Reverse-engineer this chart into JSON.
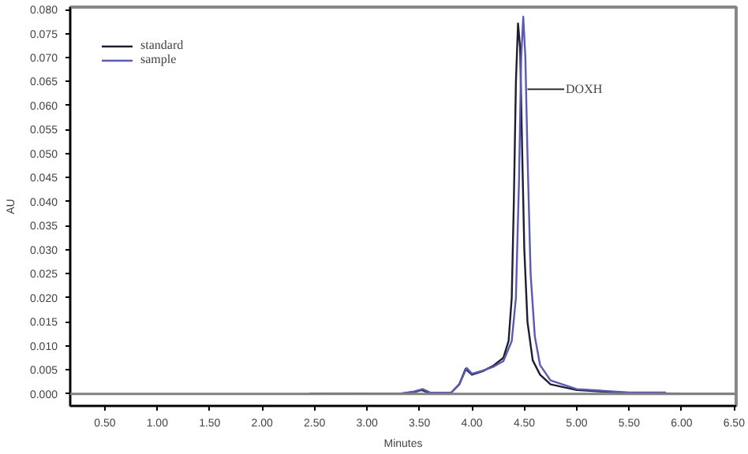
{
  "chart_data": {
    "type": "line",
    "xlabel": "Minutes",
    "ylabel": "AU",
    "xlim": [
      0.17,
      6.52
    ],
    "ylim": [
      -0.0025,
      0.0805
    ],
    "xticks": [
      {
        "value": 0.5,
        "label": "0.50"
      },
      {
        "value": 1.0,
        "label": "1.00"
      },
      {
        "value": 1.5,
        "label": "1.50"
      },
      {
        "value": 2.0,
        "label": "2.00"
      },
      {
        "value": 2.5,
        "label": "2.50"
      },
      {
        "value": 3.0,
        "label": "3.00"
      },
      {
        "value": 3.5,
        "label": "3.50"
      },
      {
        "value": 4.0,
        "label": "4.00"
      },
      {
        "value": 4.5,
        "label": "4.50"
      },
      {
        "value": 5.0,
        "label": "5.00"
      },
      {
        "value": 5.5,
        "label": "5.50"
      },
      {
        "value": 6.0,
        "label": "6.00"
      },
      {
        "value": 6.5,
        "label": "6.50"
      }
    ],
    "yticks": [
      {
        "value": 0,
        "label": "0.000"
      },
      {
        "value": 0.005,
        "label": "0.005"
      },
      {
        "value": 0.01,
        "label": "0.010"
      },
      {
        "value": 0.015,
        "label": "0.015"
      },
      {
        "value": 0.02,
        "label": "0.020"
      },
      {
        "value": 0.025,
        "label": "0.025"
      },
      {
        "value": 0.03,
        "label": "0.030"
      },
      {
        "value": 0.035,
        "label": "0.035"
      },
      {
        "value": 0.04,
        "label": "0.040"
      },
      {
        "value": 0.045,
        "label": "0.045"
      },
      {
        "value": 0.05,
        "label": "0.050"
      },
      {
        "value": 0.055,
        "label": "0.055"
      },
      {
        "value": 0.06,
        "label": "0.060"
      },
      {
        "value": 0.065,
        "label": "0.065"
      },
      {
        "value": 0.07,
        "label": "0.070"
      },
      {
        "value": 0.075,
        "label": "0.075"
      },
      {
        "value": 0.08,
        "label": "0.080"
      }
    ],
    "grid": false,
    "legend": "top left",
    "marker": "none",
    "line_style": "solid",
    "ref_lines": [
      {
        "axis": "y",
        "value": 0,
        "color": "#808080"
      }
    ],
    "annotations": [
      {
        "text": "DOXH",
        "x": 4.53,
        "y": 0.0634
      }
    ],
    "series": [
      {
        "name": "standard",
        "color": "#1e1e32",
        "x": [
          2.45,
          2.8,
          3.0,
          3.3,
          3.45,
          3.52,
          3.6,
          3.8,
          3.88,
          3.94,
          4.0,
          4.1,
          4.2,
          4.3,
          4.35,
          4.38,
          4.4,
          4.42,
          4.44,
          4.46,
          4.48,
          4.5,
          4.53,
          4.58,
          4.65,
          4.75,
          5.0,
          5.5,
          6.0,
          6.5
        ],
        "values": [
          0,
          0.0001,
          0,
          0,
          0.0004,
          0.0008,
          0.0002,
          0.0002,
          0.002,
          0.0052,
          0.004,
          0.0047,
          0.0058,
          0.0075,
          0.011,
          0.02,
          0.04,
          0.065,
          0.0771,
          0.072,
          0.05,
          0.03,
          0.015,
          0.007,
          0.004,
          0.002,
          0.0008,
          0.0002,
          0,
          0
        ]
      },
      {
        "name": "sample",
        "color": "#5a5ab4",
        "x": [
          2.45,
          2.8,
          3.0,
          3.3,
          3.45,
          3.53,
          3.6,
          3.8,
          3.88,
          3.95,
          4.0,
          4.1,
          4.2,
          4.3,
          4.38,
          4.42,
          4.45,
          4.47,
          4.49,
          4.51,
          4.53,
          4.56,
          4.6,
          4.65,
          4.75,
          5.0,
          5.5,
          5.85
        ],
        "values": [
          0,
          0.0001,
          0,
          0,
          0.0005,
          0.001,
          0.0003,
          0.0002,
          0.002,
          0.0054,
          0.0042,
          0.0048,
          0.0056,
          0.0068,
          0.011,
          0.02,
          0.045,
          0.07,
          0.0785,
          0.07,
          0.05,
          0.025,
          0.012,
          0.006,
          0.0028,
          0.001,
          0.0003,
          0.0003
        ]
      }
    ]
  }
}
